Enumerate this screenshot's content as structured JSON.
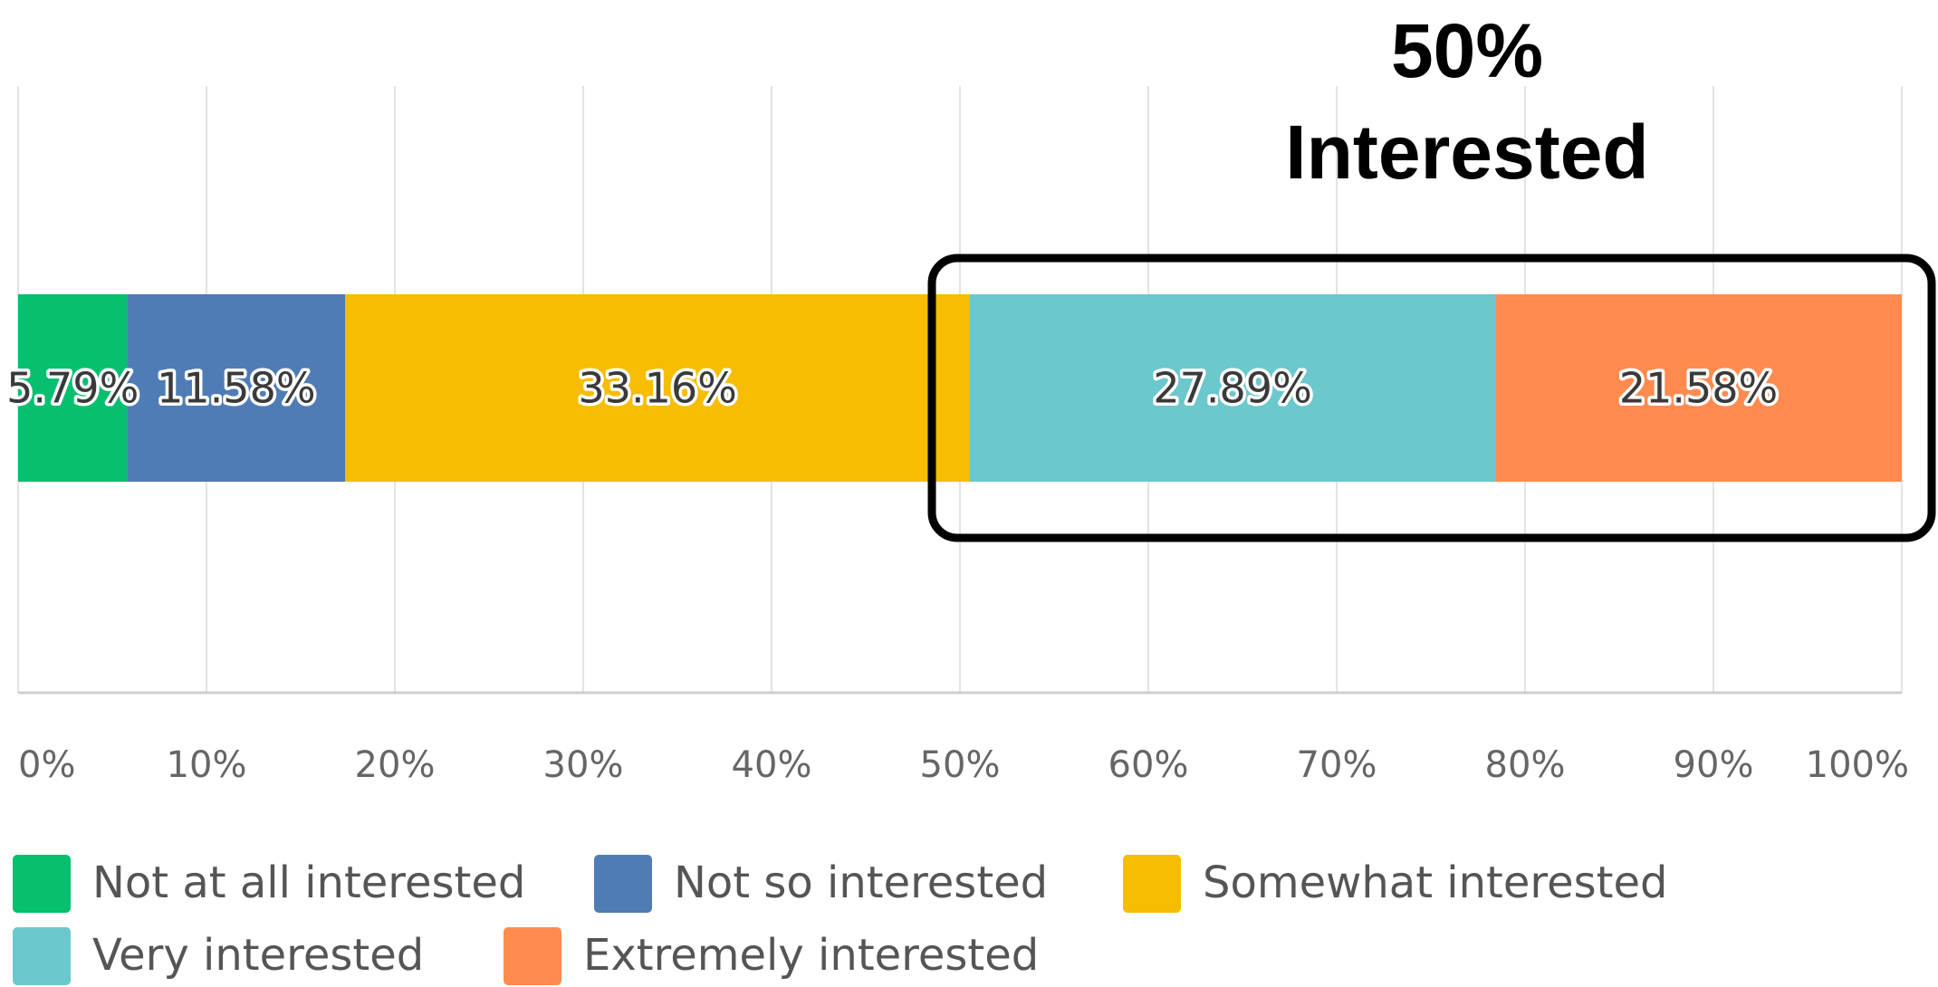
{
  "chart_data": {
    "type": "bar",
    "orientation": "horizontal",
    "stacked": true,
    "categories": [
      ""
    ],
    "series": [
      {
        "name": "Not at all interested",
        "values": [
          5.79
        ],
        "label": "5.79%",
        "color": "#06BF6F"
      },
      {
        "name": "Not so interested",
        "values": [
          11.58
        ],
        "label": "11.58%",
        "color": "#507CB6"
      },
      {
        "name": "Somewhat interested",
        "values": [
          33.16
        ],
        "label": "33.16%",
        "color": "#F6BD02"
      },
      {
        "name": "Very interested",
        "values": [
          27.89
        ],
        "label": "27.89%",
        "color": "#6BC8CD"
      },
      {
        "name": "Extremely interested",
        "values": [
          21.58
        ],
        "label": "21.58%",
        "color": "#FF8B4F"
      }
    ],
    "xlim": [
      0,
      100
    ],
    "x_ticks": [
      "0%",
      "10%",
      "20%",
      "30%",
      "40%",
      "50%",
      "60%",
      "70%",
      "80%",
      "90%",
      "100%"
    ],
    "grid": true,
    "legend_position": "bottom",
    "annotation": {
      "line1": "50%",
      "line2": "Interested",
      "highlighted_series": [
        "Very interested",
        "Extremely interested"
      ]
    }
  }
}
